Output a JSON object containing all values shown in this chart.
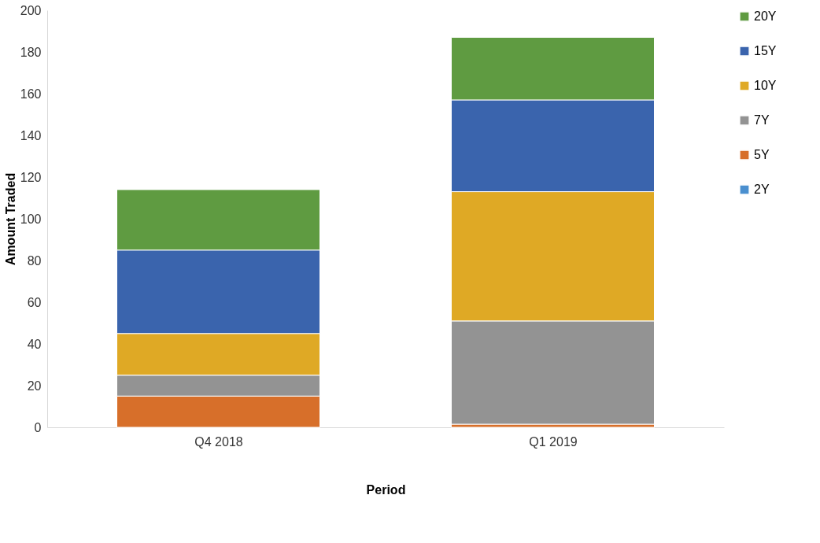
{
  "chart_data": {
    "type": "bar",
    "stacked": true,
    "xlabel": "Period",
    "ylabel": "Amount Traded",
    "categories": [
      "Q4 2018",
      "Q1 2019"
    ],
    "series": [
      {
        "name": "2Y",
        "color": "#4a8fcf",
        "values": [
          0,
          0
        ]
      },
      {
        "name": "5Y",
        "color": "#d76f2a",
        "values": [
          15,
          1.5
        ]
      },
      {
        "name": "7Y",
        "color": "#939393",
        "values": [
          10,
          49.5
        ]
      },
      {
        "name": "10Y",
        "color": "#dfa925",
        "values": [
          20,
          62
        ]
      },
      {
        "name": "15Y",
        "color": "#3a64ad",
        "values": [
          40,
          44
        ]
      },
      {
        "name": "20Y",
        "color": "#5f9b41",
        "values": [
          29,
          30
        ]
      }
    ],
    "ylim": [
      0,
      200
    ],
    "yticks": [
      0,
      20,
      40,
      60,
      80,
      100,
      120,
      140,
      160,
      180,
      200
    ],
    "grid": false,
    "legend": "right"
  }
}
